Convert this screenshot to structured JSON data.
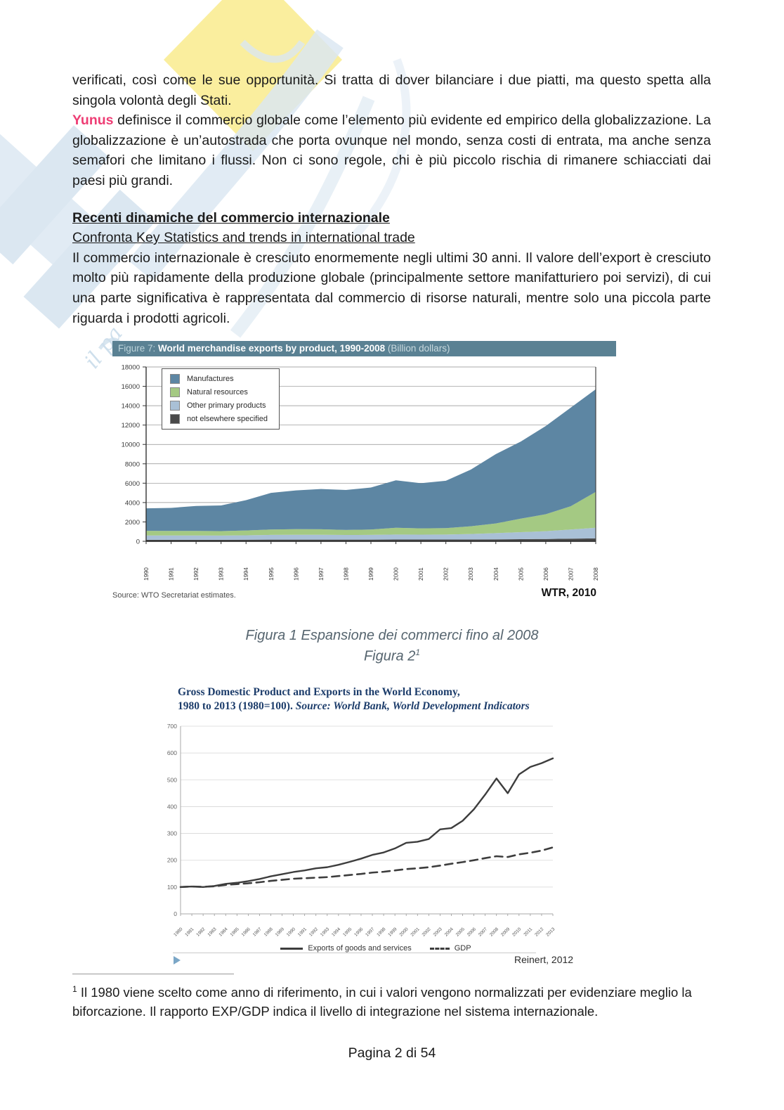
{
  "page": {
    "footer": "Pagina 2 di 54"
  },
  "intro": {
    "p1": "verificati, così come le sue opportunità. Si tratta di dover bilanciare i due piatti, ma questo spetta alla singola volontà degli Stati.",
    "author": "Yunus",
    "p2": " definisce il commercio globale come l’elemento più evidente ed empirico della globalizzazione. La globalizzazione è un’autostrada che porta ovunque nel mondo, senza costi di entrata, ma anche senza semafori che limitano i flussi. Non ci sono regole, chi è più piccolo rischia di rimanere schiacciati dai paesi più grandi."
  },
  "section": {
    "heading": "Recenti dinamiche del commercio internazionale",
    "subheading": "Confronta Key Statistics and trends in international trade",
    "body": "Il commercio internazionale è cresciuto enormemente negli ultimi 30 anni. Il valore dell’export è cresciuto molto più rapidamente della produzione globale (principalmente settore manifatturiero poi servizi), di cui una parte significativa è rappresentata dal commercio di risorse naturali, mentre solo una piccola parte riguarda i prodotti agricoli."
  },
  "figure1": {
    "title_prefix": "Figure 7:",
    "title_main": " World merchandise exports by product, 1990-2008 ",
    "title_suffix": "(Billion dollars)",
    "source": "Source: WTO Secretariat estimates.",
    "attribution": "WTR, 2010"
  },
  "captions": {
    "fig1": "Figura 1 Espansione dei commerci fino al 2008",
    "fig2": "Figura 2",
    "fig2_footnote_ref": "1"
  },
  "figure2": {
    "title_line1": "Gross Domestic Product and Exports in the World Economy,",
    "title_line2": "1980 to 2013 (1980=100). ",
    "title_line2_source": "Source: World Bank, World Development Indicators",
    "attribution": "Reinert, 2012",
    "legend": [
      "Exports of goods and services",
      "GDP"
    ]
  },
  "footnote": {
    "marker": "1",
    "text": " Il 1980 viene scelto come anno di riferimento, in cui i valori vengono normalizzati per evidenziare meglio la biforcazione. Il rapporto EXP/GDP indica il livello di integrazione nel sistema internazionale."
  },
  "chart_data": [
    {
      "type": "area",
      "stacked": true,
      "title": "Figure 7: World merchandise exports by product, 1990-2008 (Billion dollars)",
      "x": [
        1990,
        1991,
        1992,
        1993,
        1994,
        1995,
        1996,
        1997,
        1998,
        1999,
        2000,
        2001,
        2002,
        2003,
        2004,
        2005,
        2006,
        2007,
        2008
      ],
      "series": [
        {
          "name": "not elsewhere specified",
          "color": "#4a4a4a",
          "values": [
            150,
            150,
            150,
            150,
            160,
            170,
            170,
            170,
            170,
            170,
            180,
            180,
            180,
            190,
            200,
            220,
            240,
            270,
            300
          ]
        },
        {
          "name": "Other primary products",
          "color": "#a9c0d6",
          "values": [
            450,
            450,
            450,
            440,
            460,
            490,
            500,
            500,
            480,
            490,
            520,
            510,
            520,
            560,
            640,
            720,
            800,
            950,
            1100
          ]
        },
        {
          "name": "Natural resources",
          "color": "#a4c983",
          "values": [
            480,
            470,
            470,
            460,
            500,
            560,
            580,
            570,
            520,
            560,
            700,
            640,
            660,
            800,
            1000,
            1400,
            1750,
            2400,
            3700
          ]
        },
        {
          "name": "Manufactures",
          "color": "#5d86a3",
          "values": [
            2320,
            2380,
            2580,
            2650,
            3130,
            3780,
            4000,
            4160,
            4130,
            4330,
            4900,
            4670,
            4890,
            5850,
            7160,
            7960,
            9110,
            10180,
            10600
          ]
        }
      ],
      "ylim": [
        0,
        18000
      ],
      "yticks": [
        0,
        2000,
        4000,
        6000,
        8000,
        10000,
        12000,
        14000,
        16000,
        18000
      ],
      "grid": true,
      "legend_position": "top-left",
      "source": "Source: WTO Secretariat estimates.",
      "attribution": "WTR, 2010"
    },
    {
      "type": "line",
      "title": "Gross Domestic Product and Exports in the World Economy, 1980 to 2013 (1980=100)",
      "source": "World Bank, World Development Indicators",
      "x": [
        1980,
        1981,
        1982,
        1983,
        1984,
        1985,
        1986,
        1987,
        1988,
        1989,
        1990,
        1991,
        1992,
        1993,
        1994,
        1995,
        1996,
        1997,
        1998,
        1999,
        2000,
        2001,
        2002,
        2003,
        2004,
        2005,
        2006,
        2007,
        2008,
        2009,
        2010,
        2011,
        2012,
        2013
      ],
      "series": [
        {
          "name": "Exports of goods and services",
          "style": "solid",
          "color": "#3d3d3d",
          "values": [
            100,
            102,
            100,
            104,
            112,
            116,
            122,
            130,
            140,
            148,
            156,
            162,
            170,
            174,
            183,
            194,
            206,
            220,
            229,
            244,
            265,
            269,
            279,
            315,
            320,
            347,
            390,
            445,
            505,
            450,
            520,
            548,
            562,
            580
          ]
        },
        {
          "name": "GDP",
          "style": "dashed",
          "color": "#3d3d3d",
          "values": [
            100,
            102,
            101,
            103,
            108,
            111,
            114,
            118,
            123,
            127,
            131,
            133,
            135,
            137,
            141,
            145,
            149,
            154,
            157,
            162,
            167,
            170,
            174,
            180,
            187,
            193,
            200,
            208,
            215,
            212,
            222,
            228,
            236,
            248
          ]
        }
      ],
      "ylim": [
        0,
        700
      ],
      "yticks": [
        0,
        100,
        200,
        300,
        400,
        500,
        600,
        700
      ],
      "grid": true,
      "legend_position": "bottom",
      "attribution": "Reinert, 2012"
    }
  ]
}
